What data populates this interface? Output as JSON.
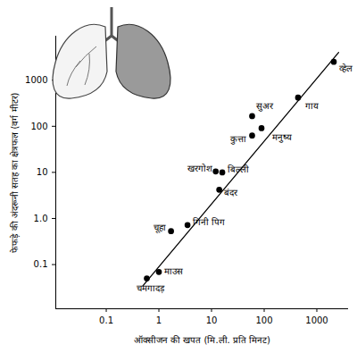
{
  "chart_data": {
    "type": "scatter",
    "x_label": "ऑक्सीजन की खपत (मि.ली. प्रति मिनट)",
    "y_label": "फेफड़े की अंदरूनी सतह का क्षेत्रफल (वर्ग मीटर)",
    "log": true,
    "color": "#000000",
    "marker": "circle",
    "categories": [
      "व्हेल",
      "गाय",
      "सुअर",
      "मनुष्य",
      "कुत्ता",
      "खरगोश",
      "बिल्ली",
      "बंदर",
      "गिनी पिग",
      "चूहा",
      "माउस",
      "चमगादड़"
    ],
    "x": [
      2100,
      440,
      59,
      89,
      59,
      12,
      16,
      14,
      3.5,
      1.7,
      1.0,
      0.59
    ],
    "values": [
      2500,
      420,
      166,
      91,
      63,
      10.5,
      10,
      4.2,
      0.72,
      0.53,
      0.069,
      0.05
    ],
    "trend_line": {
      "x": [
        0.5,
        2600
      ],
      "y": [
        0.035,
        4000
      ],
      "color": "#000000",
      "line_style": "solid"
    },
    "xlim": [
      0.011,
      4000
    ],
    "ylim": [
      0.011,
      9000
    ],
    "xticks": [
      0.1,
      1,
      10,
      100,
      1000
    ],
    "yticks": [
      0.1,
      {
        "value": 1,
        "label": "1.0"
      },
      10,
      100,
      1000
    ],
    "grid": false
  }
}
